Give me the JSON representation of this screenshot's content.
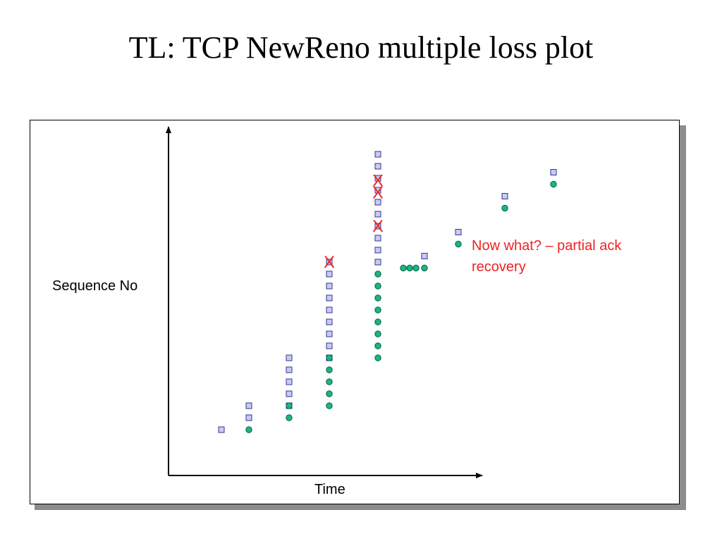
{
  "title": "TL: TCP NewReno multiple loss plot",
  "annotation": "Now what? – partial ack recovery",
  "loss_marker": "X",
  "colors": {
    "packet_fill": "#c8cbf0",
    "packet_stroke": "#333399",
    "ack_fill": "#1db386",
    "ack_stroke": "#006644",
    "loss": "#ee2222",
    "annotation": "#ee2222"
  },
  "chart_data": {
    "type": "scatter",
    "xlabel": "Time",
    "ylabel": "Sequence No",
    "xlim": [
      0,
      20
    ],
    "ylim": [
      0,
      28
    ],
    "series": [
      {
        "marker": "square",
        "points": [
          [
            2.5,
            1
          ],
          [
            3.8,
            2
          ],
          [
            3.8,
            3
          ],
          [
            5.7,
            3
          ],
          [
            5.7,
            4
          ],
          [
            5.7,
            5
          ],
          [
            5.7,
            6
          ],
          [
            5.7,
            7
          ],
          [
            7.6,
            7
          ],
          [
            7.6,
            8
          ],
          [
            7.6,
            9
          ],
          [
            7.6,
            10
          ],
          [
            7.6,
            11
          ],
          [
            7.6,
            12
          ],
          [
            7.6,
            13
          ],
          [
            7.6,
            14
          ],
          [
            7.6,
            15
          ],
          [
            9.9,
            15
          ],
          [
            9.9,
            16
          ],
          [
            9.9,
            17
          ],
          [
            9.9,
            18
          ],
          [
            9.9,
            19
          ],
          [
            9.9,
            20
          ],
          [
            9.9,
            21
          ],
          [
            9.9,
            22
          ],
          [
            9.9,
            23
          ],
          [
            9.9,
            24
          ],
          [
            12.1,
            15.5
          ],
          [
            13.7,
            17.5
          ],
          [
            15.9,
            20.5
          ],
          [
            18.2,
            22.5
          ]
        ]
      },
      {
        "marker": "circle",
        "points": [
          [
            3.8,
            1
          ],
          [
            5.7,
            2
          ],
          [
            5.7,
            3
          ],
          [
            7.6,
            3
          ],
          [
            7.6,
            4
          ],
          [
            7.6,
            5
          ],
          [
            7.6,
            6
          ],
          [
            7.6,
            7
          ],
          [
            9.9,
            7
          ],
          [
            9.9,
            8
          ],
          [
            9.9,
            9
          ],
          [
            9.9,
            10
          ],
          [
            9.9,
            11
          ],
          [
            9.9,
            12
          ],
          [
            9.9,
            13
          ],
          [
            9.9,
            14
          ],
          [
            11.1,
            14.5
          ],
          [
            11.4,
            14.5
          ],
          [
            11.7,
            14.5
          ],
          [
            12.1,
            14.5
          ],
          [
            13.7,
            16.5
          ],
          [
            15.9,
            19.5
          ],
          [
            18.2,
            21.5
          ]
        ]
      },
      {
        "marker": "x",
        "points": [
          [
            7.6,
            15
          ],
          [
            9.9,
            18
          ],
          [
            9.9,
            20.8
          ],
          [
            9.9,
            21.8
          ]
        ]
      }
    ]
  }
}
